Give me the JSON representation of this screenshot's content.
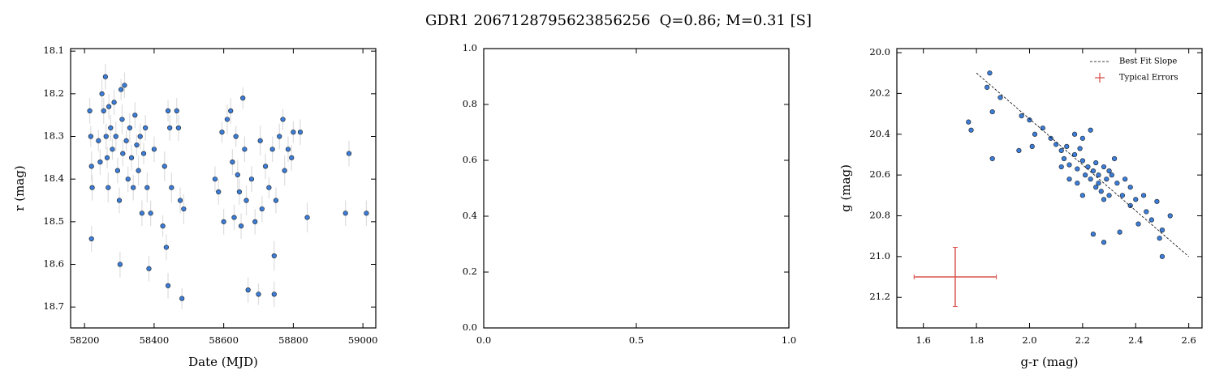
{
  "title": "GDR1 2067128795623856256  Q=0.86; M=0.31 [S]",
  "chart_data": [
    {
      "type": "scatter",
      "xlabel": "Date (MJD)",
      "ylabel": "r (mag)",
      "color": "#3b7dd8",
      "error_color": "#dddddd",
      "invert_y": true,
      "xlim": [
        58160,
        59037
      ],
      "ylim": [
        18.094,
        18.749
      ],
      "xticks": [
        58200,
        58400,
        58600,
        58800,
        59000
      ],
      "yticks": [
        18.1,
        18.2,
        18.3,
        18.4,
        18.5,
        18.6,
        18.7
      ],
      "x": [
        58215,
        58218,
        58220,
        58222,
        58220,
        58240,
        58245,
        58250,
        58255,
        58260,
        58262,
        58265,
        58268,
        58270,
        58275,
        58280,
        58285,
        58290,
        58295,
        58300,
        58302,
        58305,
        58308,
        58310,
        58315,
        58320,
        58325,
        58330,
        58335,
        58340,
        58345,
        58350,
        58355,
        58360,
        58365,
        58370,
        58375,
        58380,
        58385,
        58390,
        58400,
        58425,
        58430,
        58435,
        58440,
        58440,
        58445,
        58450,
        58465,
        58470,
        58475,
        58480,
        58485,
        58575,
        58585,
        58595,
        58600,
        58610,
        58620,
        58625,
        58630,
        58635,
        58640,
        58645,
        58650,
        58655,
        58660,
        58665,
        58670,
        58680,
        58690,
        58700,
        58705,
        58710,
        58720,
        58730,
        58740,
        58745,
        58745,
        58750,
        58760,
        58770,
        58775,
        58785,
        58795,
        58800,
        58820,
        58840,
        58950,
        58960,
        59010
      ],
      "values": [
        18.24,
        18.3,
        18.37,
        18.42,
        18.54,
        18.31,
        18.36,
        18.2,
        18.24,
        18.16,
        18.3,
        18.35,
        18.42,
        18.23,
        18.28,
        18.33,
        18.22,
        18.3,
        18.38,
        18.45,
        18.6,
        18.19,
        18.26,
        18.34,
        18.18,
        18.31,
        18.4,
        18.28,
        18.35,
        18.42,
        18.25,
        18.32,
        18.38,
        18.3,
        18.48,
        18.34,
        18.28,
        18.42,
        18.61,
        18.48,
        18.33,
        18.51,
        18.37,
        18.56,
        18.65,
        18.24,
        18.28,
        18.42,
        18.24,
        18.28,
        18.45,
        18.68,
        18.47,
        18.4,
        18.43,
        18.29,
        18.5,
        18.26,
        18.24,
        18.36,
        18.49,
        18.3,
        18.39,
        18.43,
        18.51,
        18.21,
        18.33,
        18.45,
        18.66,
        18.4,
        18.5,
        18.67,
        18.31,
        18.47,
        18.37,
        18.42,
        18.33,
        18.58,
        18.67,
        18.45,
        18.3,
        18.26,
        18.38,
        18.33,
        18.35,
        18.29,
        18.29,
        18.49,
        18.48,
        18.34,
        18.48
      ],
      "errors": [
        0.03,
        0.025,
        0.035,
        0.03,
        0.03,
        0.025,
        0.03,
        0.035,
        0.03,
        0.03,
        0.03,
        0.025,
        0.035,
        0.03,
        0.03,
        0.025,
        0.03,
        0.035,
        0.03,
        0.03,
        0.03,
        0.025,
        0.035,
        0.03,
        0.03,
        0.025,
        0.03,
        0.035,
        0.03,
        0.03,
        0.03,
        0.025,
        0.035,
        0.03,
        0.03,
        0.025,
        0.03,
        0.035,
        0.03,
        0.03,
        0.03,
        0.025,
        0.035,
        0.03,
        0.03,
        0.025,
        0.03,
        0.035,
        0.03,
        0.03,
        0.03,
        0.025,
        0.035,
        0.03,
        0.03,
        0.025,
        0.03,
        0.035,
        0.03,
        0.03,
        0.03,
        0.025,
        0.035,
        0.03,
        0.03,
        0.025,
        0.03,
        0.035,
        0.03,
        0.03,
        0.03,
        0.025,
        0.035,
        0.03,
        0.03,
        0.025,
        0.03,
        0.035,
        0.03,
        0.03,
        0.03,
        0.025,
        0.035,
        0.03,
        0.03,
        0.025,
        0.03,
        0.035,
        0.03,
        0.03,
        0.03
      ]
    },
    {
      "type": "blank",
      "xlim": [
        0,
        1
      ],
      "ylim": [
        0,
        1
      ],
      "xticks": [
        {
          "value": 0,
          "label": "0.0"
        },
        0.5,
        {
          "value": 1,
          "label": "1.0"
        }
      ],
      "yticks": [
        {
          "value": 0,
          "label": "0.0"
        },
        0.2,
        0.4,
        0.6,
        0.8,
        {
          "value": 1,
          "label": "1.0"
        }
      ]
    },
    {
      "type": "scatter",
      "xlabel": "g-r (mag)",
      "ylabel": "g (mag)",
      "color": "#3b7dd8",
      "invert_y": true,
      "legend": "upper right",
      "xlim": [
        1.5,
        2.65
      ],
      "ylim": [
        19.98,
        21.35
      ],
      "xticks": [
        1.6,
        1.8,
        {
          "value": 2,
          "label": "2.0"
        },
        2.2,
        2.4,
        2.6
      ],
      "yticks": [
        {
          "value": 20,
          "label": "20.0"
        },
        20.2,
        20.4,
        20.6,
        20.8,
        {
          "value": 21,
          "label": "21.0"
        },
        21.2
      ],
      "x": [
        1.77,
        1.78,
        1.84,
        1.85,
        1.86,
        1.86,
        1.89,
        1.96,
        1.97,
        2.0,
        2.01,
        2.02,
        2.05,
        2.08,
        2.1,
        2.12,
        2.13,
        2.14,
        2.15,
        2.15,
        2.17,
        2.18,
        2.18,
        2.19,
        2.2,
        2.2,
        2.21,
        2.22,
        2.23,
        2.23,
        2.24,
        2.24,
        2.25,
        2.26,
        2.26,
        2.27,
        2.28,
        2.28,
        2.29,
        2.3,
        2.31,
        2.32,
        2.33,
        2.34,
        2.35,
        2.36,
        2.38,
        2.38,
        2.4,
        2.41,
        2.43,
        2.44,
        2.46,
        2.48,
        2.49,
        2.5,
        2.5,
        2.53,
        2.2,
        2.17,
        2.25,
        2.3,
        2.12,
        2.28
      ],
      "values": [
        20.34,
        20.38,
        20.17,
        20.1,
        20.29,
        20.52,
        20.22,
        20.48,
        20.31,
        20.33,
        20.46,
        20.4,
        20.37,
        20.42,
        20.45,
        20.48,
        20.52,
        20.46,
        20.55,
        20.62,
        20.5,
        20.57,
        20.64,
        20.47,
        20.53,
        20.7,
        20.6,
        20.56,
        20.38,
        20.62,
        20.58,
        20.89,
        20.54,
        20.64,
        20.6,
        20.68,
        20.56,
        20.93,
        20.62,
        20.7,
        20.6,
        20.52,
        20.64,
        20.88,
        20.7,
        20.62,
        20.66,
        20.75,
        20.72,
        20.84,
        20.7,
        20.78,
        20.82,
        20.73,
        20.91,
        20.87,
        21.0,
        20.8,
        20.42,
        20.4,
        20.66,
        20.58,
        20.56,
        20.72
      ],
      "fit": {
        "name": "Best Fit Slope",
        "color": "#000000",
        "x": [
          1.8,
          2.6
        ],
        "values": [
          20.1,
          21.0
        ]
      },
      "typical_errors": {
        "name": "Typical Errors",
        "color": "#d9534f",
        "x": 1.72,
        "value": 21.1,
        "xerr": 0.155,
        "yerr": 0.145
      }
    }
  ]
}
